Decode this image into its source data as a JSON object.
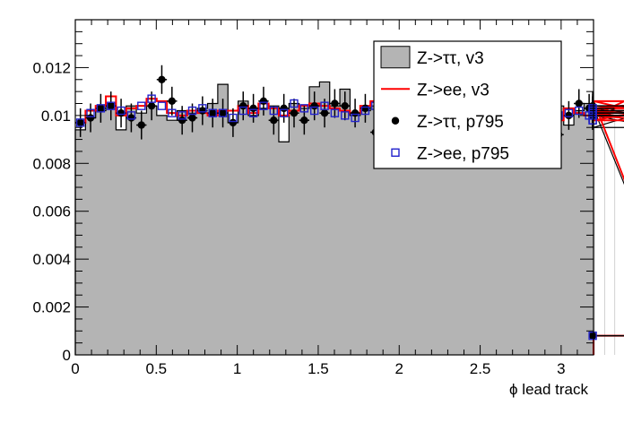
{
  "chart_data": {
    "type": "histogram",
    "xlabel": "ϕ lead track",
    "ylabel": "",
    "xlim": [
      0,
      3.2
    ],
    "ylim": [
      0,
      0.014
    ],
    "x_ticks": [
      "0",
      "0.5",
      "1",
      "1.5",
      "2",
      "2.5",
      "3"
    ],
    "y_ticks": [
      "0",
      "0.002",
      "0.004",
      "0.006",
      "0.008",
      "0.01",
      "0.012"
    ],
    "bin_width": 0.06283,
    "grid": false,
    "legend_position": "top-right",
    "legend": [
      {
        "label": "Z->ττ, v3",
        "style": "filled-box"
      },
      {
        "label": "Z->ee, v3",
        "style": "red-line"
      },
      {
        "label": "Z->ττ, p795",
        "style": "black-marker"
      },
      {
        "label": "Z->ee, p795",
        "style": "blue-open-square"
      }
    ],
    "series": [
      {
        "name": "Z->ττ, v3",
        "style": "filled-histogram",
        "color": "#b4b4b4",
        "values": [
          0.0094,
          0.0099,
          0.0102,
          0.0105,
          0.0094,
          0.0104,
          0.0101,
          0.0104,
          0.01,
          0.0098,
          0.0102,
          0.0101,
          0.0103,
          0.0105,
          0.0113,
          0.0097,
          0.0106,
          0.01,
          0.0103,
          0.0104,
          0.0089,
          0.0105,
          0.0103,
          0.0112,
          0.0114,
          0.0104,
          0.0111,
          0.01,
          0.0102,
          0.0104,
          0.0097,
          0.01,
          0.0103,
          0.0098,
          0.01,
          0.0103,
          0.0102,
          0.0101,
          0.0103,
          0.0101,
          0.0104,
          0.0101,
          0.01,
          0.0103,
          0.0102,
          0.0096,
          0.0101,
          0.0104,
          0.0096,
          0.0102,
          0.0105,
          0.0103,
          0.0102,
          0.01,
          0.0104,
          0.0103,
          0.01,
          0.0095,
          0.0104,
          0.0103,
          0.0008
        ]
      },
      {
        "name": "Z->ee, v3",
        "style": "red-step-line",
        "color": "#ff0000",
        "values": [
          0.0097,
          0.0102,
          0.0104,
          0.0108,
          0.01,
          0.0103,
          0.0104,
          0.0107,
          0.0106,
          0.0101,
          0.01,
          0.0102,
          0.0101,
          0.01,
          0.0102,
          0.0102,
          0.0104,
          0.0101,
          0.0105,
          0.0103,
          0.01,
          0.0102,
          0.0104,
          0.0105,
          0.0104,
          0.0103,
          0.0102,
          0.0101,
          0.0104,
          0.0106,
          0.0103,
          0.0099,
          0.0104,
          0.0106,
          0.0104,
          0.0103,
          0.0106,
          0.0102,
          0.0104,
          0.01,
          0.0101,
          0.0102,
          0.0101,
          0.01,
          0.0102,
          0.0101,
          0.01,
          0.0098,
          0.0103,
          0.0101,
          0.01,
          0.0104,
          0.0101,
          0.01,
          0.0106,
          0.0102,
          0.01,
          0.0098,
          0.0103,
          0.0106,
          0.0008
        ]
      },
      {
        "name": "Z->ττ, p795",
        "style": "black-markers-with-errors",
        "color": "#000000",
        "values": [
          0.0097,
          0.0099,
          0.0103,
          0.0104,
          0.0101,
          0.0099,
          0.0096,
          0.0104,
          0.0115,
          0.0106,
          0.0098,
          0.0099,
          0.0102,
          0.0101,
          0.0101,
          0.0097,
          0.0104,
          0.0103,
          0.0106,
          0.0098,
          0.0103,
          0.0101,
          0.0098,
          0.0104,
          0.0101,
          0.0105,
          0.0104,
          0.0101,
          0.0103,
          0.0093,
          0.0101,
          0.0105,
          0.0102,
          0.0103,
          0.0098,
          0.0105,
          0.011,
          0.0102,
          0.01,
          0.0102,
          0.0101,
          0.0098,
          0.0099,
          0.01,
          0.0101,
          0.0097,
          0.0104,
          0.0092,
          0.01,
          0.0105,
          0.0103,
          0.0102,
          0.0101,
          0.0103,
          0.0101,
          0.01,
          0.01,
          0.0104,
          0.0102,
          0.0101,
          0.0008
        ]
      },
      {
        "name": "Z->ee, p795",
        "style": "blue-open-squares",
        "color": "#2222cc",
        "values": [
          0.0097,
          0.0101,
          0.0103,
          0.0104,
          0.0102,
          0.01,
          0.0104,
          0.0107,
          0.0104,
          0.0101,
          0.01,
          0.0102,
          0.0103,
          0.0101,
          0.0101,
          0.0099,
          0.0102,
          0.0101,
          0.0104,
          0.0102,
          0.0101,
          0.0105,
          0.0103,
          0.0102,
          0.0104,
          0.0101,
          0.01,
          0.0099,
          0.0102,
          0.0104,
          0.0102,
          0.0098,
          0.0101,
          0.0103,
          0.0102,
          0.0104,
          0.0103,
          0.01,
          0.0103,
          0.0101,
          0.0102,
          0.0101,
          0.01,
          0.0104,
          0.0099,
          0.0102,
          0.01,
          0.01,
          0.0101,
          0.0102,
          0.01,
          0.0101,
          0.0098,
          0.0101,
          0.0103,
          0.01,
          0.01,
          0.0098,
          0.0102,
          0.0102,
          0.0008
        ]
      }
    ]
  }
}
